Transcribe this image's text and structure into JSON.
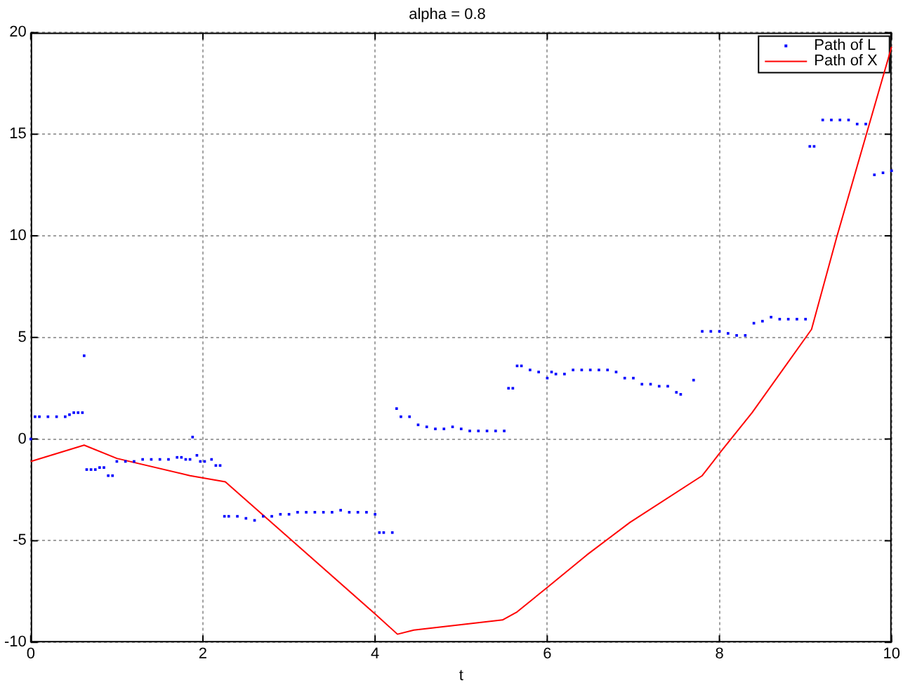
{
  "chart_data": {
    "type": "scatter",
    "title": "alpha = 0.8",
    "xlabel": "t",
    "xlim": [
      0,
      10
    ],
    "xticks": [
      0,
      2,
      4,
      6,
      8,
      10
    ],
    "ylim": [
      -10,
      20
    ],
    "yticks": [
      -10,
      -5,
      0,
      5,
      10,
      15,
      20
    ],
    "grid": true,
    "legend": "top right",
    "marker": "square",
    "series": [
      {
        "name": "Path of L",
        "color": "#0000ff",
        "x": [
          0,
          0.05,
          0.1,
          0.2,
          0.3,
          0.4,
          0.45,
          0.5,
          0.55,
          0.6,
          0.62,
          0.65,
          0.7,
          0.75,
          0.8,
          0.85,
          0.9,
          0.95,
          1.0,
          1.1,
          1.2,
          1.3,
          1.4,
          1.5,
          1.6,
          1.7,
          1.75,
          1.8,
          1.85,
          1.88,
          1.93,
          1.97,
          2.02,
          2.1,
          2.15,
          2.2,
          2.25,
          2.3,
          2.4,
          2.5,
          2.6,
          2.7,
          2.8,
          2.9,
          3.0,
          3.1,
          3.2,
          3.3,
          3.4,
          3.5,
          3.6,
          3.7,
          3.8,
          3.9,
          4.0,
          4.05,
          4.1,
          4.2,
          4.25,
          4.3,
          4.4,
          4.5,
          4.6,
          4.7,
          4.8,
          4.9,
          5.0,
          5.1,
          5.2,
          5.3,
          5.4,
          5.5,
          5.55,
          5.6,
          5.65,
          5.7,
          5.8,
          5.9,
          6.0,
          6.05,
          6.1,
          6.2,
          6.3,
          6.4,
          6.5,
          6.6,
          6.7,
          6.8,
          6.9,
          7.0,
          7.1,
          7.2,
          7.3,
          7.4,
          7.5,
          7.55,
          7.7,
          7.8,
          7.9,
          8.0,
          8.1,
          8.2,
          8.3,
          8.4,
          8.5,
          8.6,
          8.7,
          8.8,
          8.9,
          9.0,
          9.05,
          9.1,
          9.2,
          9.3,
          9.4,
          9.5,
          9.6,
          9.7,
          9.8,
          9.9,
          10.0
        ],
        "values": [
          0,
          1.1,
          1.1,
          1.1,
          1.1,
          1.1,
          1.2,
          1.3,
          1.3,
          1.3,
          4.1,
          -1.5,
          -1.5,
          -1.5,
          -1.4,
          -1.4,
          -1.8,
          -1.8,
          -1.1,
          -1.1,
          -1.1,
          -1.0,
          -1.0,
          -1.0,
          -1.0,
          -0.9,
          -0.9,
          -1.0,
          -1.0,
          0.1,
          -0.8,
          -1.1,
          -1.1,
          -1.0,
          -1.3,
          -1.3,
          -3.8,
          -3.8,
          -3.8,
          -3.9,
          -4.0,
          -3.8,
          -3.8,
          -3.7,
          -3.7,
          -3.6,
          -3.6,
          -3.6,
          -3.6,
          -3.6,
          -3.5,
          -3.6,
          -3.6,
          -3.6,
          -3.7,
          -4.6,
          -4.6,
          -4.6,
          1.5,
          1.1,
          1.1,
          0.7,
          0.6,
          0.5,
          0.5,
          0.6,
          0.5,
          0.4,
          0.4,
          0.4,
          0.4,
          0.4,
          2.5,
          2.5,
          3.6,
          3.6,
          3.4,
          3.3,
          3.0,
          3.3,
          3.2,
          3.2,
          3.4,
          3.4,
          3.4,
          3.4,
          3.4,
          3.3,
          3.0,
          3.0,
          2.7,
          2.7,
          2.6,
          2.6,
          2.3,
          2.2,
          2.9,
          5.3,
          5.3,
          5.3,
          5.2,
          5.1,
          5.1,
          5.7,
          5.8,
          6.0,
          5.9,
          5.9,
          5.9,
          5.9,
          14.4,
          14.4,
          15.7,
          15.7,
          15.7,
          15.7,
          15.5,
          15.5,
          13.0,
          13.1,
          13.2
        ]
      },
      {
        "name": "Path of X",
        "color": "#ff0000",
        "type": "line",
        "marker": "none",
        "x": [
          0,
          0.62,
          1.0,
          1.85,
          2.26,
          4.0,
          4.26,
          4.45,
          5.48,
          5.65,
          6.0,
          6.46,
          6.96,
          7.8,
          8.02,
          8.38,
          9.07,
          9.36,
          10.0
        ],
        "values": [
          -1.1,
          -0.3,
          -0.95,
          -1.8,
          -2.1,
          -8.6,
          -9.6,
          -9.4,
          -8.9,
          -8.5,
          -7.3,
          -5.7,
          -4.1,
          -1.8,
          -0.6,
          1.3,
          5.4,
          9.9,
          19.3
        ]
      }
    ]
  }
}
